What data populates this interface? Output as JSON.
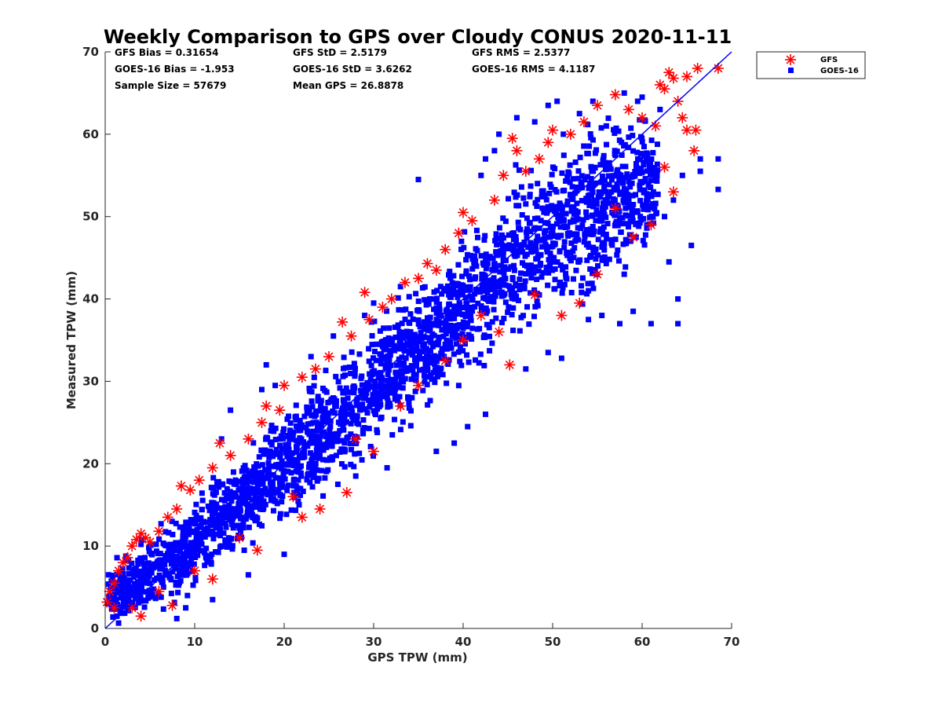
{
  "colors": {
    "gfs": "#ff0000",
    "goes": "#0000ff",
    "axis": "#262626",
    "line": "#0000ff"
  },
  "stats": [
    {
      "label": "GFS Bias = 0.31654"
    },
    {
      "label": "GFS StD = 2.5179"
    },
    {
      "label": "GFS RMS = 2.5377"
    },
    {
      "label": "GOES-16 Bias = -1.953"
    },
    {
      "label": "GOES-16 StD = 3.6262"
    },
    {
      "label": "GOES-16 RMS = 4.1187"
    },
    {
      "label": "Sample Size = 57679"
    },
    {
      "label": "Mean GPS = 26.8878"
    }
  ],
  "chart_data": {
    "type": "scatter",
    "title": "Weekly Comparison to GPS over Cloudy CONUS 2020-11-11",
    "xlabel": "GPS TPW (mm)",
    "ylabel": "Measured TPW (mm)",
    "xlim": [
      0,
      70
    ],
    "ylim": [
      0,
      70
    ],
    "xticks": [
      "0",
      "10",
      "20",
      "30",
      "40",
      "50",
      "60",
      "70"
    ],
    "yticks": [
      "0",
      "10",
      "20",
      "30",
      "40",
      "50",
      "60",
      "70"
    ],
    "grid": false,
    "legend_position": "top-right (outside)",
    "reference_line": {
      "type": "one-to-one",
      "from": [
        0,
        0
      ],
      "to": [
        70,
        70
      ]
    },
    "series": [
      {
        "name": "GFS",
        "marker": "asterisk",
        "color": "#ff0000",
        "points": [
          [
            0.2,
            3.2
          ],
          [
            0.5,
            4.5
          ],
          [
            1.0,
            5.5
          ],
          [
            1.5,
            7.0
          ],
          [
            2.0,
            8.0
          ],
          [
            2.5,
            8.6
          ],
          [
            3.0,
            10.0
          ],
          [
            3.5,
            10.8
          ],
          [
            4.0,
            11.5
          ],
          [
            4.5,
            11.0
          ],
          [
            5.0,
            10.5
          ],
          [
            6.0,
            11.8
          ],
          [
            7.0,
            13.5
          ],
          [
            8.0,
            14.5
          ],
          [
            8.5,
            17.3
          ],
          [
            9.5,
            16.8
          ],
          [
            10.5,
            18.0
          ],
          [
            12.0,
            19.5
          ],
          [
            12.8,
            22.5
          ],
          [
            14.0,
            21.0
          ],
          [
            16.0,
            23.0
          ],
          [
            17.5,
            25.0
          ],
          [
            18.0,
            27.0
          ],
          [
            19.5,
            26.5
          ],
          [
            20.0,
            29.5
          ],
          [
            22.0,
            30.5
          ],
          [
            23.5,
            31.5
          ],
          [
            25.0,
            33.0
          ],
          [
            26.5,
            37.2
          ],
          [
            27.5,
            35.5
          ],
          [
            29.0,
            40.8
          ],
          [
            29.5,
            37.5
          ],
          [
            31.0,
            39.0
          ],
          [
            32.0,
            40.0
          ],
          [
            33.5,
            42.0
          ],
          [
            35.0,
            42.5
          ],
          [
            36.0,
            44.3
          ],
          [
            37.0,
            43.5
          ],
          [
            38.0,
            46.0
          ],
          [
            39.5,
            48.0
          ],
          [
            40.0,
            50.5
          ],
          [
            41.0,
            49.5
          ],
          [
            43.5,
            52.0
          ],
          [
            44.5,
            55.0
          ],
          [
            45.5,
            59.5
          ],
          [
            46.0,
            58.0
          ],
          [
            47.0,
            55.5
          ],
          [
            48.5,
            57.0
          ],
          [
            49.5,
            59.0
          ],
          [
            50.0,
            60.5
          ],
          [
            52.0,
            60.0
          ],
          [
            53.5,
            61.5
          ],
          [
            55.0,
            63.5
          ],
          [
            57.0,
            64.8
          ],
          [
            58.5,
            63.0
          ],
          [
            60.0,
            62.0
          ],
          [
            61.5,
            61.0
          ],
          [
            62.0,
            66.0
          ],
          [
            62.5,
            65.5
          ],
          [
            63.0,
            67.5
          ],
          [
            63.5,
            66.8
          ],
          [
            64.0,
            64.0
          ],
          [
            64.5,
            62.0
          ],
          [
            65.0,
            60.5
          ],
          [
            65.0,
            67.0
          ],
          [
            65.8,
            58.0
          ],
          [
            66.0,
            60.5
          ],
          [
            66.2,
            68.0
          ],
          [
            68.5,
            68.0
          ],
          [
            45.2,
            32.0
          ],
          [
            51.0,
            38.0
          ],
          [
            42.0,
            38.0
          ],
          [
            38.0,
            32.5
          ],
          [
            35.0,
            29.5
          ],
          [
            30.0,
            21.5
          ],
          [
            27.0,
            16.5
          ],
          [
            24.0,
            14.5
          ],
          [
            22.0,
            13.5
          ],
          [
            17.0,
            9.5
          ],
          [
            12.0,
            6.0
          ],
          [
            7.5,
            2.8
          ],
          [
            4.0,
            1.5
          ],
          [
            53.0,
            39.5
          ],
          [
            55.0,
            43.0
          ],
          [
            59.0,
            47.5
          ],
          [
            61.0,
            49.0
          ],
          [
            62.5,
            56.0
          ],
          [
            63.5,
            53.0
          ],
          [
            57.0,
            51.0
          ],
          [
            48.0,
            40.5
          ],
          [
            44.0,
            36.0
          ],
          [
            40.0,
            35.0
          ],
          [
            33.0,
            27.0
          ],
          [
            28.0,
            23.0
          ],
          [
            21.0,
            16.0
          ],
          [
            15.0,
            11.0
          ],
          [
            10.0,
            7.0
          ],
          [
            6.0,
            4.5
          ],
          [
            3.0,
            2.5
          ],
          [
            1.0,
            2.5
          ]
        ]
      },
      {
        "name": "GOES-16",
        "marker": "square",
        "color": "#0000ff",
        "band": [
          [
            0.5,
            0.0,
            8.5
          ],
          [
            2,
            0.5,
            9.0
          ],
          [
            4,
            0.5,
            11.0
          ],
          [
            6,
            1.0,
            12.5
          ],
          [
            8,
            2.0,
            14.5
          ],
          [
            10,
            4.0,
            17.0
          ],
          [
            12,
            5.5,
            19.5
          ],
          [
            14,
            7.0,
            21.0
          ],
          [
            16,
            9.0,
            23.0
          ],
          [
            18,
            10.5,
            25.5
          ],
          [
            20,
            12.0,
            27.5
          ],
          [
            22,
            13.5,
            29.5
          ],
          [
            24,
            15.0,
            31.5
          ],
          [
            26,
            16.5,
            34.0
          ],
          [
            28,
            17.5,
            36.0
          ],
          [
            30,
            20.0,
            38.5
          ],
          [
            32,
            22.5,
            40.0
          ],
          [
            34,
            24.0,
            42.0
          ],
          [
            36,
            26.0,
            43.0
          ],
          [
            38,
            28.0,
            45.5
          ],
          [
            40,
            29.5,
            48.5
          ],
          [
            42,
            31.0,
            51.0
          ],
          [
            44,
            33.0,
            53.5
          ],
          [
            46,
            34.0,
            57.0
          ],
          [
            48,
            36.0,
            58.5
          ],
          [
            50,
            37.5,
            60.0
          ],
          [
            52,
            38.5,
            61.0
          ],
          [
            54,
            39.0,
            62.5
          ],
          [
            56,
            40.0,
            63.0
          ],
          [
            58,
            41.5,
            63.5
          ],
          [
            60,
            44.0,
            63.0
          ],
          [
            61.5,
            47.0,
            61.0
          ]
        ],
        "outliers": [
          [
            49.5,
            63.5
          ],
          [
            50.5,
            64.0
          ],
          [
            51.2,
            60.0
          ],
          [
            58.0,
            65.0
          ],
          [
            59.5,
            64.0
          ],
          [
            62.5,
            50.0
          ],
          [
            63.5,
            52.0
          ],
          [
            64.5,
            55.0
          ],
          [
            65.5,
            46.5
          ],
          [
            63.0,
            44.5
          ],
          [
            64.0,
            40.0
          ],
          [
            64.0,
            37.0
          ],
          [
            66.5,
            55.5
          ],
          [
            66.5,
            57.0
          ],
          [
            68.5,
            57.0
          ],
          [
            68.5,
            53.3
          ],
          [
            61.0,
            37.0
          ],
          [
            59.0,
            38.5
          ],
          [
            57.5,
            37.0
          ],
          [
            55.5,
            38.0
          ],
          [
            54.0,
            37.5
          ],
          [
            51.0,
            32.8
          ],
          [
            49.5,
            33.5
          ],
          [
            47.0,
            31.5
          ],
          [
            42.5,
            26.0
          ],
          [
            40.5,
            24.5
          ],
          [
            37.0,
            21.5
          ],
          [
            39.0,
            22.5
          ],
          [
            31.5,
            19.5
          ],
          [
            28.0,
            18.5
          ],
          [
            26.0,
            17.5
          ],
          [
            35.0,
            54.5
          ],
          [
            33.0,
            41.5
          ],
          [
            30.0,
            39.5
          ],
          [
            29.0,
            38.0
          ],
          [
            25.5,
            35.5
          ],
          [
            23.0,
            33.0
          ],
          [
            19.0,
            29.5
          ],
          [
            18.0,
            32.0
          ],
          [
            17.5,
            29.0
          ],
          [
            14.0,
            26.5
          ],
          [
            13.0,
            23.0
          ],
          [
            42.0,
            55.0
          ],
          [
            43.5,
            58.0
          ],
          [
            42.5,
            57.0
          ],
          [
            48.0,
            61.5
          ],
          [
            53.0,
            62.5
          ],
          [
            54.5,
            64.0
          ],
          [
            60.0,
            64.5
          ],
          [
            62.0,
            63.0
          ],
          [
            56.0,
            61.0
          ],
          [
            44.0,
            60.0
          ],
          [
            46.0,
            62.0
          ],
          [
            54.0,
            41.0
          ],
          [
            58.0,
            43.0
          ],
          [
            12.0,
            3.5
          ],
          [
            9.0,
            2.5
          ],
          [
            16.0,
            6.5
          ],
          [
            20.0,
            9.0
          ],
          [
            8.0,
            1.2
          ]
        ]
      }
    ]
  }
}
